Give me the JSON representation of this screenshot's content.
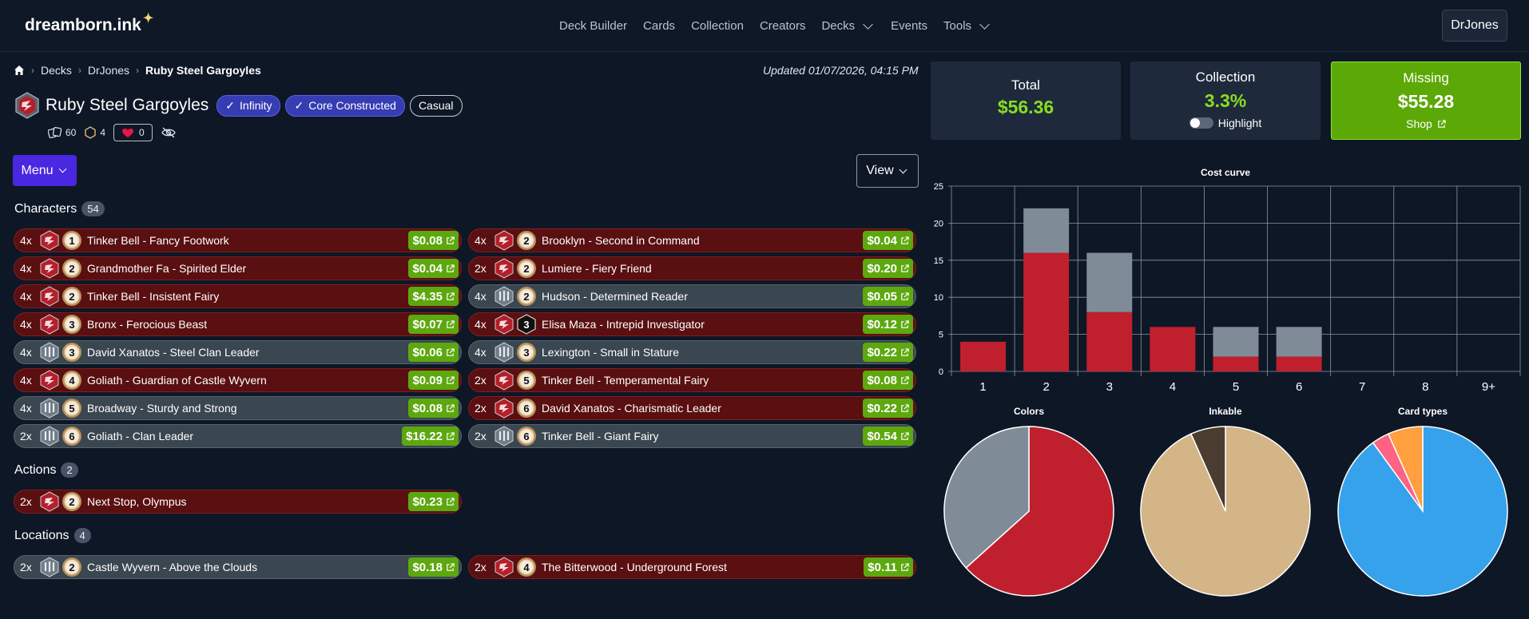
{
  "nav": {
    "logo": "dreamborn.ink",
    "links": [
      "Deck Builder",
      "Cards",
      "Collection",
      "Creators",
      "Decks",
      "Events",
      "Tools"
    ],
    "user": "DrJones"
  },
  "breadcrumb": [
    "Decks",
    "DrJones",
    "Ruby Steel Gargoyles"
  ],
  "updated": "Updated 01/07/2026, 04:15 PM",
  "deck": {
    "title": "Ruby Steel Gargoyles",
    "tags": [
      "Infinity",
      "Core Constructed",
      "Casual"
    ],
    "card_count": "60",
    "ink_count": "4",
    "likes": "0"
  },
  "buttons": {
    "menu": "Menu",
    "view": "View"
  },
  "sections": {
    "characters": {
      "label": "Characters",
      "count": "54"
    },
    "actions": {
      "label": "Actions",
      "count": "2"
    },
    "locations": {
      "label": "Locations",
      "count": "4"
    }
  },
  "cards": {
    "characters_left": [
      {
        "qty": "4x",
        "ink": "ruby",
        "cost": "1",
        "name": "Tinker Bell - Fancy Footwork",
        "price": "$0.08",
        "inkable": true
      },
      {
        "qty": "4x",
        "ink": "ruby",
        "cost": "2",
        "name": "Grandmother Fa - Spirited Elder",
        "price": "$0.04",
        "inkable": true
      },
      {
        "qty": "4x",
        "ink": "ruby",
        "cost": "2",
        "name": "Tinker Bell - Insistent Fairy",
        "price": "$4.35",
        "inkable": true
      },
      {
        "qty": "4x",
        "ink": "ruby",
        "cost": "3",
        "name": "Bronx - Ferocious Beast",
        "price": "$0.07",
        "inkable": true
      },
      {
        "qty": "4x",
        "ink": "steel",
        "cost": "3",
        "name": "David Xanatos - Steel Clan Leader",
        "price": "$0.06",
        "inkable": true
      },
      {
        "qty": "4x",
        "ink": "ruby",
        "cost": "4",
        "name": "Goliath - Guardian of Castle Wyvern",
        "price": "$0.09",
        "inkable": true
      },
      {
        "qty": "4x",
        "ink": "steel",
        "cost": "5",
        "name": "Broadway - Sturdy and Strong",
        "price": "$0.08",
        "inkable": true
      },
      {
        "qty": "2x",
        "ink": "steel",
        "cost": "6",
        "name": "Goliath - Clan Leader",
        "price": "$16.22",
        "inkable": true
      }
    ],
    "characters_right": [
      {
        "qty": "4x",
        "ink": "ruby",
        "cost": "2",
        "name": "Brooklyn - Second in Command",
        "price": "$0.04",
        "inkable": true
      },
      {
        "qty": "2x",
        "ink": "ruby",
        "cost": "2",
        "name": "Lumiere - Fiery Friend",
        "price": "$0.20",
        "inkable": true
      },
      {
        "qty": "4x",
        "ink": "steel",
        "cost": "2",
        "name": "Hudson - Determined Reader",
        "price": "$0.05",
        "inkable": true
      },
      {
        "qty": "4x",
        "ink": "ruby",
        "cost": "3",
        "name": "Elisa Maza - Intrepid Investigator",
        "price": "$0.12",
        "inkable": false
      },
      {
        "qty": "4x",
        "ink": "steel",
        "cost": "3",
        "name": "Lexington - Small in Stature",
        "price": "$0.22",
        "inkable": true
      },
      {
        "qty": "2x",
        "ink": "ruby",
        "cost": "5",
        "name": "Tinker Bell - Temperamental Fairy",
        "price": "$0.08",
        "inkable": true
      },
      {
        "qty": "2x",
        "ink": "ruby",
        "cost": "6",
        "name": "David Xanatos - Charismatic Leader",
        "price": "$0.22",
        "inkable": true
      },
      {
        "qty": "2x",
        "ink": "steel",
        "cost": "6",
        "name": "Tinker Bell - Giant Fairy",
        "price": "$0.54",
        "inkable": true
      }
    ],
    "actions": [
      {
        "qty": "2x",
        "ink": "ruby",
        "cost": "2",
        "name": "Next Stop, Olympus",
        "price": "$0.23",
        "inkable": true
      }
    ],
    "locations": [
      {
        "qty": "2x",
        "ink": "steel",
        "cost": "2",
        "name": "Castle Wyvern - Above the Clouds",
        "price": "$0.18",
        "inkable": true
      },
      {
        "qty": "2x",
        "ink": "ruby",
        "cost": "4",
        "name": "The Bitterwood - Underground Forest",
        "price": "$0.11",
        "inkable": true
      }
    ]
  },
  "summary": {
    "total": {
      "label": "Total",
      "value": "$56.36"
    },
    "collection": {
      "label": "Collection",
      "value": "3.3%",
      "toggle_label": "Highlight",
      "toggle_on": false
    },
    "missing": {
      "label": "Missing",
      "value": "$55.28",
      "link": "Shop"
    }
  },
  "colors": {
    "ruby": "#c0202e",
    "steel": "#7f8c98",
    "price_bg": "#5da80f",
    "accent": "#4a27e0",
    "inkable": "#d4b587",
    "uninkable": "#4a3c2e",
    "blue": "#36a2eb",
    "orange": "#ff9f40",
    "pink": "#ff6384"
  },
  "chart_data": [
    {
      "type": "bar",
      "title": "Cost curve",
      "categories": [
        "1",
        "2",
        "3",
        "4",
        "5",
        "6",
        "7",
        "8",
        "9+"
      ],
      "stacked": true,
      "series": [
        {
          "color": "#c0202e",
          "values": [
            4,
            16,
            8,
            6,
            2,
            2,
            0,
            0,
            0
          ]
        },
        {
          "color": "#7f8c98",
          "values": [
            0,
            6,
            8,
            0,
            4,
            4,
            0,
            0,
            0
          ]
        }
      ],
      "ylim": [
        0,
        25
      ],
      "yticks": [
        0,
        5,
        10,
        15,
        20,
        25
      ],
      "grid": true
    },
    {
      "type": "pie",
      "title": "Colors",
      "slices": [
        {
          "value": 38,
          "color": "#c0202e"
        },
        {
          "value": 22,
          "color": "#7f8c98"
        }
      ]
    },
    {
      "type": "pie",
      "title": "Inkable",
      "slices": [
        {
          "value": 56,
          "color": "#d4b587"
        },
        {
          "value": 4,
          "color": "#4a3c2e"
        }
      ]
    },
    {
      "type": "pie",
      "title": "Card types",
      "slices": [
        {
          "value": 54,
          "color": "#36a2eb"
        },
        {
          "value": 2,
          "color": "#ff6384"
        },
        {
          "value": 4,
          "color": "#ff9f40"
        }
      ]
    }
  ]
}
